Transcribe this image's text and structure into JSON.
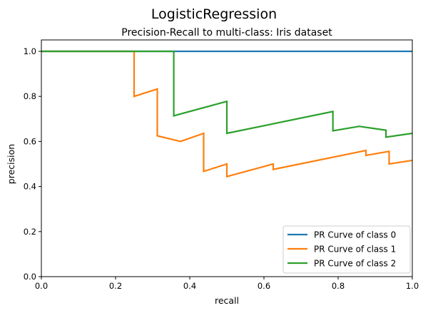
{
  "chart_data": {
    "type": "line",
    "suptitle": "LogisticRegression",
    "title": "Precision-Recall to multi-class: Iris dataset",
    "xlabel": "recall",
    "ylabel": "precision",
    "xlim": [
      0.0,
      1.0
    ],
    "ylim": [
      0.0,
      1.0
    ],
    "xticks": [
      "0.0",
      "0.2",
      "0.4",
      "0.6",
      "0.8",
      "1.0"
    ],
    "yticks": [
      "0.0",
      "0.2",
      "0.4",
      "0.6",
      "0.8",
      "1.0"
    ],
    "grid": false,
    "legend_position": "lower-right",
    "series": [
      {
        "name": "PR Curve of class 0",
        "color": "#1f77b4",
        "x": [
          0.0,
          1.0
        ],
        "y": [
          1.0,
          1.0
        ]
      },
      {
        "name": "PR Curve of class 1",
        "color": "#ff7f0e",
        "x": [
          0.0,
          0.25,
          0.25,
          0.3125,
          0.3125,
          0.375,
          0.4375,
          0.4375,
          0.5,
          0.5,
          0.625,
          0.625,
          0.875,
          0.875,
          0.9375,
          0.9375,
          1.0
        ],
        "y": [
          1.0,
          1.0,
          0.8,
          0.833,
          0.625,
          0.6,
          0.636,
          0.467,
          0.5,
          0.444,
          0.5,
          0.476,
          0.56,
          0.538,
          0.556,
          0.5,
          0.516
        ]
      },
      {
        "name": "PR Curve of class 2",
        "color": "#2ca02c",
        "x": [
          0.0,
          0.357,
          0.357,
          0.5,
          0.5,
          0.786,
          0.786,
          0.857,
          0.929,
          0.929,
          1.0
        ],
        "y": [
          1.0,
          1.0,
          0.714,
          0.778,
          0.636,
          0.733,
          0.647,
          0.667,
          0.65,
          0.619,
          0.636
        ]
      }
    ]
  }
}
